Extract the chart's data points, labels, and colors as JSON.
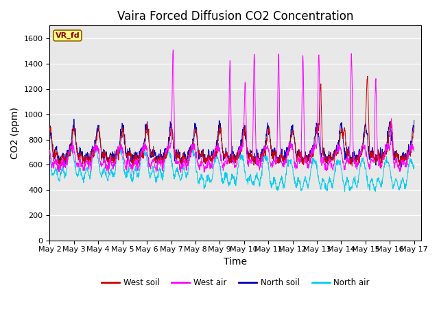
{
  "title": "Vaira Forced Diffusion CO2 Concentration",
  "xlabel": "Time",
  "ylabel": "CO2 (ppm)",
  "ylim": [
    0,
    1700
  ],
  "yticks": [
    0,
    200,
    400,
    600,
    800,
    1000,
    1200,
    1400,
    1600
  ],
  "xlim_days": [
    1.0,
    16.3
  ],
  "xtick_days": [
    1,
    2,
    3,
    4,
    5,
    6,
    7,
    8,
    9,
    10,
    11,
    12,
    13,
    14,
    15,
    16
  ],
  "xtick_labels": [
    "May 2",
    "May 3",
    "May 4",
    "May 5",
    "May 6",
    "May 7",
    "May 8",
    "May 9",
    "May 10",
    "May 11",
    "May 12",
    "May 13",
    "May 14",
    "May 15",
    "May 16",
    "May 17"
  ],
  "label_box": "VR_fd",
  "colors": {
    "west_soil": "#cc0000",
    "west_air": "#ff00ff",
    "north_soil": "#0000bb",
    "north_air": "#00ccee"
  },
  "legend_labels": [
    "West soil",
    "West air",
    "North soil",
    "North air"
  ],
  "background_color": "#e8e8e8",
  "title_fontsize": 12,
  "axis_fontsize": 10,
  "tick_fontsize": 8
}
